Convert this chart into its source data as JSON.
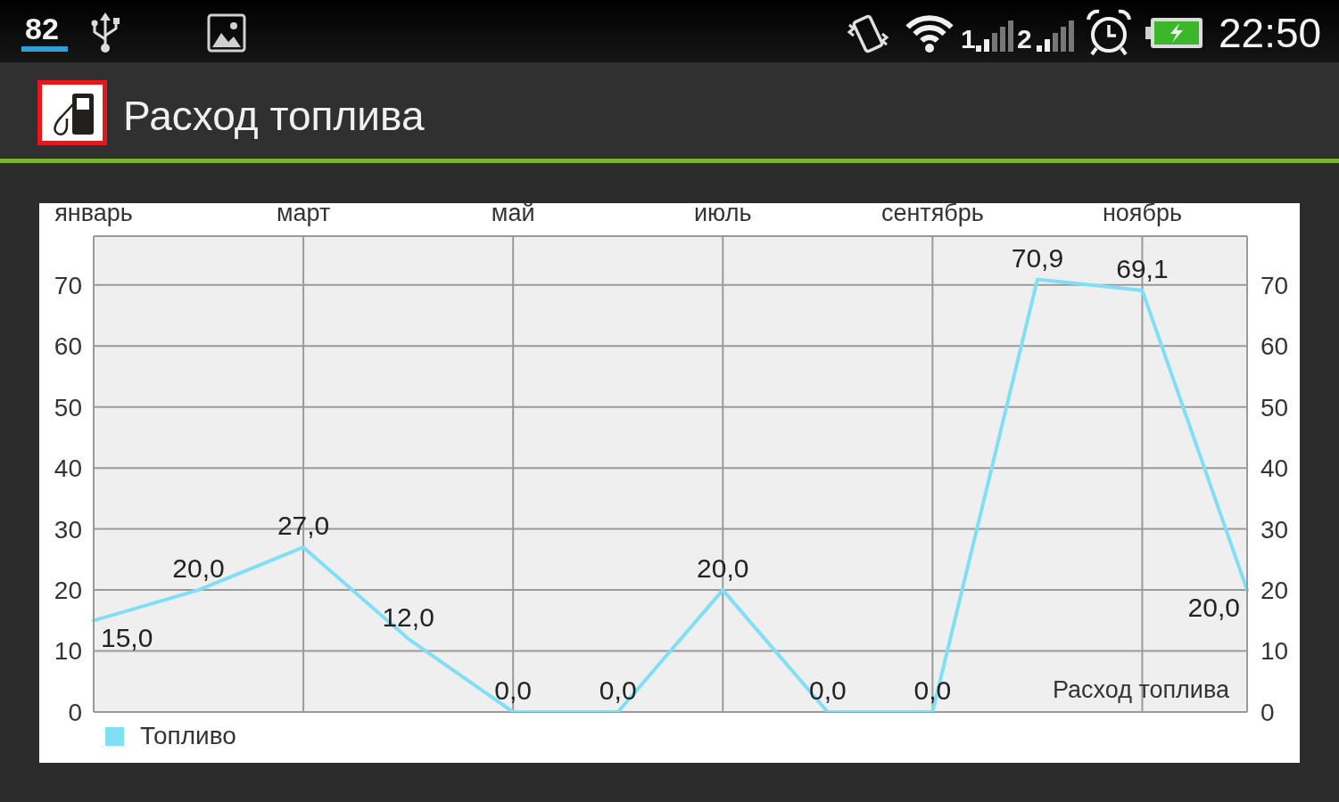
{
  "chart_data": {
    "type": "line",
    "title": "Расход топлива",
    "categories": [
      "январь",
      null,
      "март",
      null,
      "май",
      null,
      "июль",
      null,
      "сентябрь",
      null,
      "ноябрь",
      null
    ],
    "series": [
      {
        "name": "Топливо",
        "color": "#80dff5",
        "values": [
          15,
          20,
          27,
          12,
          0,
          0,
          20,
          0,
          0,
          70.9,
          69.1,
          20
        ],
        "value_labels": [
          "15,0",
          "20,0",
          "27,0",
          "12,0",
          "0,0",
          "0,0",
          "20,0",
          "0,0",
          "0,0",
          "70,9",
          "69,1",
          "20,0"
        ]
      }
    ],
    "ylim": [
      0,
      78
    ],
    "yticks": [
      0,
      10,
      20,
      30,
      40,
      50,
      60,
      70
    ],
    "y2lim": [
      0,
      78
    ],
    "y2ticks": [
      0,
      10,
      20,
      30,
      40,
      50,
      60,
      70
    ],
    "grid": true,
    "legend": "bottom left",
    "marker": "none",
    "line_style": "solid",
    "annotations": [
      "Расход топлива",
      "82",
      "1",
      "2",
      "22:50"
    ]
  }
}
